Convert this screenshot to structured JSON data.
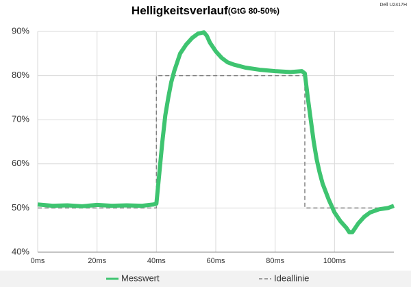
{
  "chart_data": {
    "type": "line",
    "title": "Helligkeitsverlauf",
    "subtitle": "(GtG 80-50%)",
    "annotation": "Dell U2417H",
    "xlim": [
      0,
      120
    ],
    "xticks": [
      {
        "value": 0,
        "label": "0ms"
      },
      {
        "value": 20,
        "label": "20ms"
      },
      {
        "value": 40,
        "label": "40ms"
      },
      {
        "value": 60,
        "label": "60ms"
      },
      {
        "value": 80,
        "label": "80ms"
      },
      {
        "value": 100,
        "label": "100ms"
      }
    ],
    "ylim": [
      40,
      90
    ],
    "yticks": [
      {
        "value": 40,
        "label": "40%"
      },
      {
        "value": 50,
        "label": "50%"
      },
      {
        "value": 60,
        "label": "60%"
      },
      {
        "value": 70,
        "label": "70%"
      },
      {
        "value": 80,
        "label": "80%"
      },
      {
        "value": 90,
        "label": "90%"
      }
    ],
    "grid": true,
    "legend": "bottom",
    "series": [
      {
        "name": "Messwert",
        "color": "#3ec470",
        "style": "solid",
        "x": [
          0,
          5,
          10,
          15,
          20,
          25,
          30,
          35,
          39,
          40,
          41,
          42,
          43,
          44,
          45,
          46,
          47,
          48,
          50,
          52,
          54,
          56,
          57,
          58,
          60,
          62,
          64,
          66,
          70,
          75,
          80,
          85,
          89,
          90,
          91,
          92,
          93,
          94,
          95,
          96,
          98,
          100,
          102,
          104,
          105,
          106,
          108,
          110,
          112,
          115,
          118,
          120
        ],
        "values": [
          50.8,
          50.5,
          50.6,
          50.4,
          50.7,
          50.5,
          50.6,
          50.5,
          50.8,
          51,
          58,
          65,
          71,
          75,
          78.5,
          81,
          83,
          85,
          87,
          88.5,
          89.5,
          89.8,
          89,
          87.5,
          85.5,
          84,
          83,
          82.5,
          81.8,
          81.3,
          81,
          80.8,
          81,
          80.5,
          75,
          70,
          65,
          61,
          58,
          55.5,
          52,
          49,
          47,
          45.5,
          44.5,
          44.5,
          46.5,
          48,
          49,
          49.7,
          50,
          50.5
        ]
      },
      {
        "name": "Ideallinie",
        "color": "#808080",
        "style": "dashed",
        "x": [
          0,
          40,
          40,
          90,
          90,
          120
        ],
        "values": [
          50,
          50,
          80,
          80,
          50,
          50
        ]
      }
    ]
  }
}
